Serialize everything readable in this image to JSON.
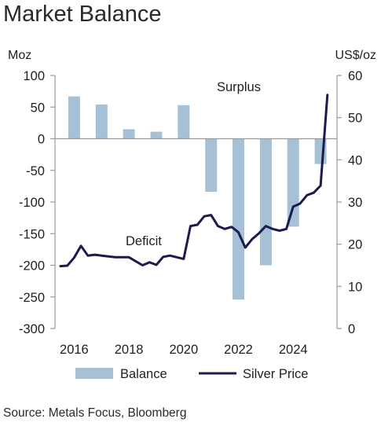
{
  "source": "Source: Metals Focus, Bloomberg",
  "chart_data": {
    "type": "bar",
    "title": "Market Balance",
    "ylabel": "Moz",
    "y2label": "US$/oz",
    "ylim": [
      -300,
      100
    ],
    "y2lim": [
      0,
      60
    ],
    "yticks": [
      100,
      50,
      0,
      -50,
      -100,
      -150,
      -200,
      -250,
      -300
    ],
    "y2ticks": [
      60,
      50,
      40,
      30,
      20,
      10,
      0
    ],
    "xlim": [
      2015.3,
      2025.6
    ],
    "xticks": [
      2016,
      2018,
      2020,
      2022,
      2024
    ],
    "legend": "bottom",
    "grid": false,
    "colors": {
      "balance": "#a6c0d6",
      "price": "#1c1a4e"
    },
    "annotations": [
      {
        "text": "Surplus"
      },
      {
        "text": "Deficit"
      }
    ],
    "series": [
      {
        "name": "Balance",
        "type": "bar",
        "axis": "left",
        "x": [
          2016,
          2017,
          2018,
          2019,
          2020,
          2021,
          2022,
          2023,
          2024,
          2025
        ],
        "values": [
          67,
          54,
          15,
          11,
          53,
          -84,
          -254,
          -200,
          -139,
          -40
        ]
      },
      {
        "name": "Silver Price",
        "type": "line",
        "axis": "right",
        "x": [
          2015.5,
          2015.75,
          2016.0,
          2016.25,
          2016.5,
          2016.75,
          2017.0,
          2017.5,
          2018.0,
          2018.5,
          2018.75,
          2019.0,
          2019.25,
          2019.5,
          2019.75,
          2020.0,
          2020.25,
          2020.5,
          2020.75,
          2021.0,
          2021.25,
          2021.5,
          2021.75,
          2022.0,
          2022.25,
          2022.5,
          2022.75,
          2023.0,
          2023.25,
          2023.5,
          2023.75,
          2024.0,
          2024.25,
          2024.5,
          2024.75,
          2025.0,
          2025.25
        ],
        "values": [
          14.8,
          14.9,
          16.8,
          19.6,
          17.3,
          17.5,
          17.3,
          16.9,
          16.9,
          15.0,
          15.7,
          15.1,
          17.0,
          17.3,
          16.9,
          16.5,
          24.3,
          24.6,
          26.6,
          26.9,
          24.3,
          23.6,
          24.1,
          22.8,
          19.2,
          21.2,
          22.6,
          24.3,
          23.6,
          23.2,
          23.6,
          28.9,
          29.6,
          31.6,
          32.2,
          33.9,
          55.4
        ]
      }
    ]
  }
}
